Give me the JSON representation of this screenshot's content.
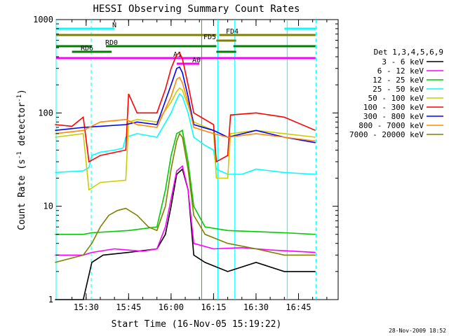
{
  "chart_data": {
    "type": "line",
    "title": "HESSI Observing Summary Count Rates",
    "xlabel": "Start Time (16-Nov-05 15:19:22)",
    "ylabel_main": "Count Rate (s",
    "ylabel_sup1": "-1",
    "ylabel_mid": " detector",
    "ylabel_sup2": "-1",
    "ylabel_end": ")",
    "yscale": "log",
    "ylim": [
      1,
      1000
    ],
    "xlim_minutes": [
      15.37,
      16.98
    ],
    "x_ticks": [
      {
        "label": "15:30",
        "min": 930
      },
      {
        "label": "15:45",
        "min": 945
      },
      {
        "label": "16:00",
        "min": 960
      },
      {
        "label": "16:15",
        "min": 975
      },
      {
        "label": "16:30",
        "min": 990
      },
      {
        "label": "16:45",
        "min": 1005
      }
    ],
    "y_ticks": [
      {
        "label": "1",
        "value": 1
      },
      {
        "label": "10",
        "value": 10
      },
      {
        "label": "100",
        "value": 100
      },
      {
        "label": "1000",
        "value": 1000
      }
    ],
    "legend_title": "Det 1,3,4,5,6,9",
    "legend_position": "right",
    "series": [
      {
        "name": "3 - 6 keV",
        "color": "#000000",
        "pts": [
          [
            919,
            1
          ],
          [
            929,
            1
          ],
          [
            932,
            2.5
          ],
          [
            936,
            3
          ],
          [
            945,
            3.2
          ],
          [
            955,
            3.5
          ],
          [
            958,
            5
          ],
          [
            960,
            10
          ],
          [
            962,
            22
          ],
          [
            964,
            25
          ],
          [
            966,
            15
          ],
          [
            968,
            3
          ],
          [
            972,
            2.5
          ],
          [
            980,
            2
          ],
          [
            990,
            2.5
          ],
          [
            1000,
            2
          ],
          [
            1011,
            2
          ]
        ]
      },
      {
        "name": "6 - 12 keV",
        "color": "#ff00ff",
        "pts": [
          [
            919,
            3
          ],
          [
            929,
            3
          ],
          [
            932,
            3.2
          ],
          [
            940,
            3.5
          ],
          [
            950,
            3.3
          ],
          [
            955,
            3.5
          ],
          [
            958,
            6
          ],
          [
            960,
            12
          ],
          [
            962,
            24
          ],
          [
            964,
            27
          ],
          [
            966,
            15
          ],
          [
            968,
            4
          ],
          [
            975,
            3.5
          ],
          [
            985,
            3.6
          ],
          [
            995,
            3.4
          ],
          [
            1011,
            3.2
          ]
        ]
      },
      {
        "name": "12 - 25 keV",
        "color": "#00cc00",
        "pts": [
          [
            919,
            5
          ],
          [
            929,
            5
          ],
          [
            932,
            5.2
          ],
          [
            945,
            5.5
          ],
          [
            955,
            6
          ],
          [
            958,
            15
          ],
          [
            960,
            35
          ],
          [
            962,
            60
          ],
          [
            964,
            65
          ],
          [
            966,
            30
          ],
          [
            968,
            10
          ],
          [
            972,
            6
          ],
          [
            980,
            5.5
          ],
          [
            1000,
            5.2
          ],
          [
            1011,
            5
          ]
        ]
      },
      {
        "name": "25 - 50 keV",
        "color": "#00ffff",
        "pts": [
          [
            919,
            23
          ],
          [
            929,
            24
          ],
          [
            930,
            25
          ],
          [
            931,
            26
          ],
          [
            932,
            35
          ],
          [
            935,
            38
          ],
          [
            940,
            40
          ],
          [
            943,
            42
          ],
          [
            944,
            55
          ],
          [
            948,
            60
          ],
          [
            955,
            55
          ],
          [
            960,
            100
          ],
          [
            962,
            140
          ],
          [
            963,
            160
          ],
          [
            964,
            150
          ],
          [
            966,
            100
          ],
          [
            968,
            55
          ],
          [
            972,
            45
          ],
          [
            975,
            40
          ],
          [
            976,
            25
          ],
          [
            980,
            22
          ],
          [
            985,
            22
          ],
          [
            990,
            25
          ],
          [
            1000,
            23
          ],
          [
            1011,
            22
          ]
        ]
      },
      {
        "name": "50 - 100 keV",
        "color": "#cccc00",
        "pts": [
          [
            919,
            55
          ],
          [
            929,
            60
          ],
          [
            931,
            15
          ],
          [
            935,
            18
          ],
          [
            944,
            19
          ],
          [
            945,
            80
          ],
          [
            948,
            85
          ],
          [
            955,
            80
          ],
          [
            960,
            130
          ],
          [
            962,
            170
          ],
          [
            963,
            185
          ],
          [
            964,
            175
          ],
          [
            966,
            120
          ],
          [
            968,
            80
          ],
          [
            975,
            65
          ],
          [
            976,
            20
          ],
          [
            980,
            20
          ],
          [
            981,
            60
          ],
          [
            990,
            65
          ],
          [
            1000,
            60
          ],
          [
            1011,
            55
          ]
        ]
      },
      {
        "name": "100 - 300 keV",
        "color": "#ff0000",
        "pts": [
          [
            919,
            75
          ],
          [
            925,
            72
          ],
          [
            929,
            90
          ],
          [
            931,
            30
          ],
          [
            935,
            35
          ],
          [
            944,
            40
          ],
          [
            945,
            160
          ],
          [
            948,
            100
          ],
          [
            955,
            100
          ],
          [
            958,
            180
          ],
          [
            960,
            300
          ],
          [
            962,
            420
          ],
          [
            963,
            440
          ],
          [
            964,
            380
          ],
          [
            966,
            200
          ],
          [
            968,
            100
          ],
          [
            975,
            75
          ],
          [
            976,
            30
          ],
          [
            980,
            35
          ],
          [
            981,
            95
          ],
          [
            990,
            100
          ],
          [
            1000,
            90
          ],
          [
            1011,
            65
          ]
        ]
      },
      {
        "name": "300 - 800 keV",
        "color": "#0000ff",
        "pts": [
          [
            919,
            65
          ],
          [
            929,
            70
          ],
          [
            935,
            72
          ],
          [
            944,
            75
          ],
          [
            948,
            80
          ],
          [
            955,
            75
          ],
          [
            960,
            200
          ],
          [
            962,
            300
          ],
          [
            963,
            310
          ],
          [
            964,
            270
          ],
          [
            966,
            150
          ],
          [
            968,
            75
          ],
          [
            975,
            65
          ],
          [
            980,
            55
          ],
          [
            990,
            65
          ],
          [
            1000,
            55
          ],
          [
            1011,
            48
          ]
        ]
      },
      {
        "name": "800 - 7000 keV",
        "color": "#ff8800",
        "pts": [
          [
            919,
            60
          ],
          [
            929,
            65
          ],
          [
            935,
            80
          ],
          [
            944,
            85
          ],
          [
            948,
            75
          ],
          [
            955,
            70
          ],
          [
            960,
            150
          ],
          [
            962,
            230
          ],
          [
            963,
            240
          ],
          [
            964,
            210
          ],
          [
            966,
            130
          ],
          [
            968,
            70
          ],
          [
            975,
            60
          ],
          [
            980,
            55
          ],
          [
            990,
            60
          ],
          [
            1000,
            55
          ],
          [
            1011,
            50
          ]
        ]
      },
      {
        "name": "7000 - 20000 keV",
        "color": "#808000",
        "pts": [
          [
            919,
            2.5
          ],
          [
            929,
            3
          ],
          [
            932,
            4
          ],
          [
            935,
            6
          ],
          [
            938,
            8
          ],
          [
            941,
            9
          ],
          [
            944,
            9.5
          ],
          [
            948,
            8
          ],
          [
            952,
            6
          ],
          [
            955,
            5.5
          ],
          [
            958,
            10
          ],
          [
            960,
            25
          ],
          [
            962,
            50
          ],
          [
            963,
            60
          ],
          [
            964,
            55
          ],
          [
            966,
            25
          ],
          [
            968,
            8
          ],
          [
            972,
            5
          ],
          [
            980,
            4
          ],
          [
            990,
            3.5
          ],
          [
            1000,
            3
          ],
          [
            1011,
            3
          ]
        ]
      }
    ],
    "annotations": {
      "bars": [
        {
          "label": "N",
          "color": "#00ffff",
          "segments": [
            [
              919,
              940
            ],
            [
              1000,
              1011
            ]
          ],
          "level": 1
        },
        {
          "label": "FD4",
          "color": "#808000",
          "segments": [
            [
              919,
              976
            ],
            [
              977,
              1011
            ]
          ],
          "level": 2
        },
        {
          "label": "FD5",
          "color": "#808000",
          "segments": [
            [
              976,
              983
            ]
          ],
          "level": 3
        },
        {
          "label": "RD0",
          "color": "#008000",
          "segments": [
            [
              919,
              932
            ],
            [
              937,
              976
            ],
            [
              982,
              1011
            ]
          ],
          "level": 4
        },
        {
          "label": "RD6",
          "color": "#008000",
          "segments": [
            [
              925,
              939
            ],
            [
              976,
              983
            ]
          ],
          "level": 5
        },
        {
          "label": "A1",
          "color": "#ff00ff",
          "segments": [
            [
              919,
              1011
            ]
          ],
          "level": 6
        },
        {
          "label": "A0",
          "color": "#ff00ff",
          "segments": [
            [
              962,
              970
            ]
          ],
          "level": 7
        }
      ],
      "vlines": [
        {
          "min": 919.4,
          "color": "#00ffff",
          "dash": false
        },
        {
          "min": 931.8,
          "color": "#00ffff",
          "dash": true
        },
        {
          "min": 976.5,
          "color": "#00ffff",
          "dash": false
        },
        {
          "min": 982.5,
          "color": "#00ffff",
          "dash": false
        },
        {
          "min": 1001,
          "color": "#00ffff",
          "dash": false
        },
        {
          "min": 1011.2,
          "color": "#00ffff",
          "dash": true
        },
        {
          "min": 970.8,
          "color": "#00cc00",
          "dash": false
        }
      ]
    },
    "timestamp": "28-Nov-2009 18:52"
  }
}
